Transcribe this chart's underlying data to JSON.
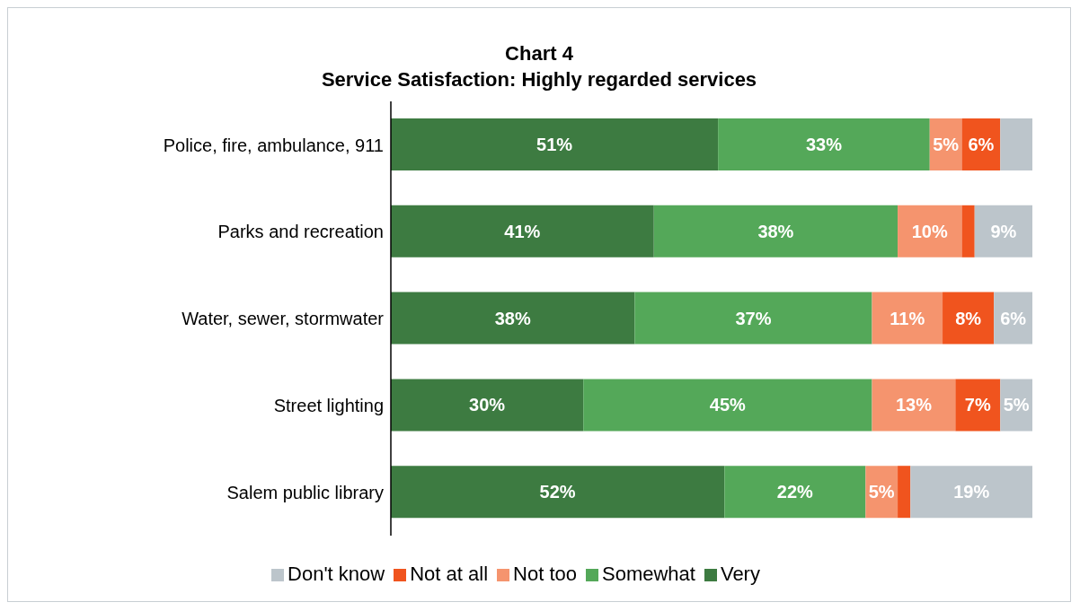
{
  "chart_data": {
    "type": "bar",
    "orientation": "horizontal",
    "stacked": true,
    "title": "Chart 4",
    "subtitle": "Service Satisfaction: Highly regarded services",
    "categories": [
      "Police, fire, ambulance, 911",
      "Parks and recreation",
      "Water, sewer, stormwater",
      "Street lighting",
      "Salem public library"
    ],
    "series": [
      {
        "name": "Very",
        "color": "#3d7b41",
        "values": [
          51,
          41,
          38,
          30,
          52
        ],
        "value_labels": [
          "51%",
          "41%",
          "38%",
          "30%",
          "52%"
        ]
      },
      {
        "name": "Somewhat",
        "color": "#54a859",
        "values": [
          33,
          38,
          37,
          45,
          22
        ],
        "value_labels": [
          "33%",
          "38%",
          "37%",
          "45%",
          "22%"
        ]
      },
      {
        "name": "Not too",
        "color": "#f5946e",
        "values": [
          5,
          10,
          11,
          13,
          5
        ],
        "value_labels": [
          "5%",
          "10%",
          "11%",
          "13%",
          "5%"
        ]
      },
      {
        "name": "Not at all",
        "color": "#f0541e",
        "values": [
          6,
          2,
          8,
          7,
          2
        ],
        "value_labels": [
          "6%",
          null,
          "8%",
          "7%",
          null
        ]
      },
      {
        "name": "Don't know",
        "color": "#bcc5cb",
        "values": [
          5,
          9,
          6,
          5,
          19
        ],
        "value_labels": [
          null,
          "9%",
          "6%",
          "5%",
          "19%"
        ]
      }
    ],
    "legend": "bottom",
    "grid": false
  }
}
